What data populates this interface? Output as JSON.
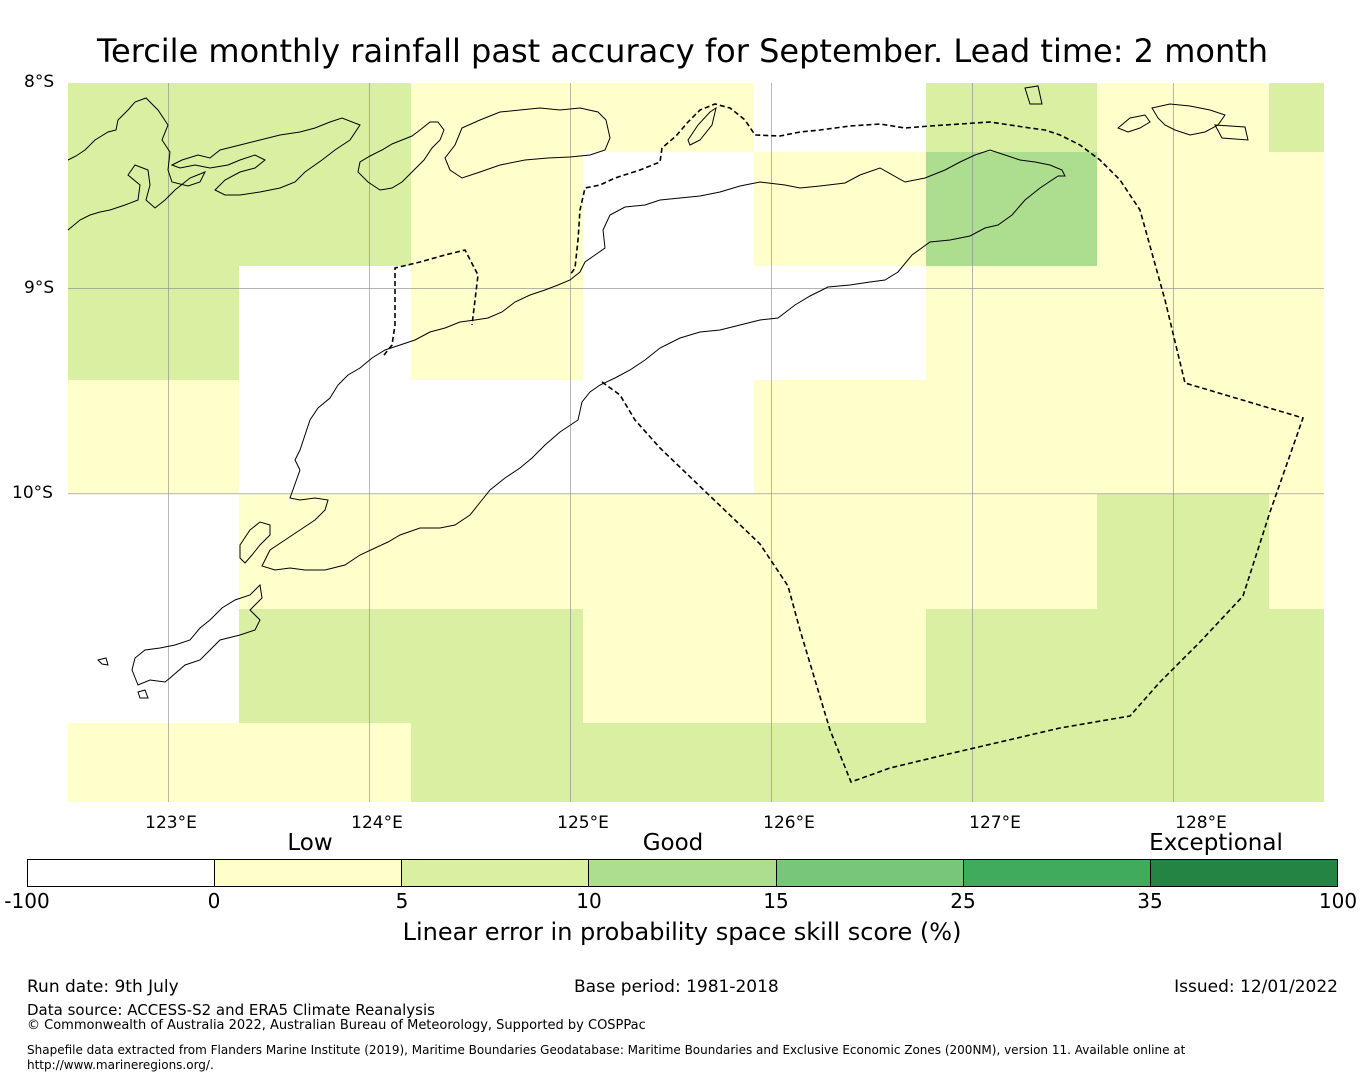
{
  "title": "Tercile monthly rainfall past accuracy for September. Lead time: 2 month",
  "map": {
    "lat_labels": [
      "8°S",
      "9°S",
      "10°S"
    ],
    "lon_labels": [
      "123°E",
      "124°E",
      "125°E",
      "126°E",
      "127°E",
      "128°E"
    ],
    "extent": {
      "lon_min": 122.5,
      "lon_max": 128.75,
      "lat_min": -11.5,
      "lat_max": -8.0
    },
    "grid_lines": true,
    "cell_size_deg": {
      "lon": 0.833,
      "lat": 0.556
    },
    "grid_values_category": [
      [
        2,
        2,
        1,
        1,
        0,
        2,
        1,
        2
      ],
      [
        2,
        2,
        1,
        0,
        1,
        3,
        1,
        1
      ],
      [
        2,
        0,
        1,
        0,
        0,
        1,
        1,
        1
      ],
      [
        1,
        0,
        0,
        0,
        1,
        1,
        1,
        1
      ],
      [
        0,
        1,
        1,
        1,
        1,
        1,
        2,
        1
      ],
      [
        0,
        2,
        2,
        1,
        1,
        2,
        2,
        2
      ],
      [
        1,
        1,
        2,
        2,
        2,
        2,
        2,
        2
      ]
    ],
    "category_note": "0: below 0, 1: 0-5, 2: 5-10, 3: 10-15"
  },
  "colorbar": {
    "category_labels": [
      "Low",
      "Good",
      "Exceptional"
    ],
    "ticks": [
      "-100",
      "0",
      "5",
      "10",
      "15",
      "25",
      "35",
      "100"
    ],
    "colors": [
      "#ffffff",
      "#ffffcc",
      "#d9f0a3",
      "#addd8e",
      "#78c679",
      "#41ab5d",
      "#238443"
    ],
    "title": "Linear error in probability space skill score (%)"
  },
  "footer": {
    "run_date": "Run date: 9th July",
    "base_period": "Base period: 1981-2018",
    "issued": "Issued: 12/01/2022",
    "data_source": "Data source: ACCESS-S2 and ERA5 Climate Reanalysis",
    "copyright": "© Commonwealth of Australia 2022, Australian Bureau of Meteorology, Supported by COSPPac",
    "shapefile_line1": "Shapefile data extracted from Flanders Marine Institute (2019), Maritime Boundaries Geodatabase: Maritime Boundaries and Exclusive Economic Zones (200NM), version 11. Available online at",
    "shapefile_line2": "http://www.marineregions.org/."
  }
}
